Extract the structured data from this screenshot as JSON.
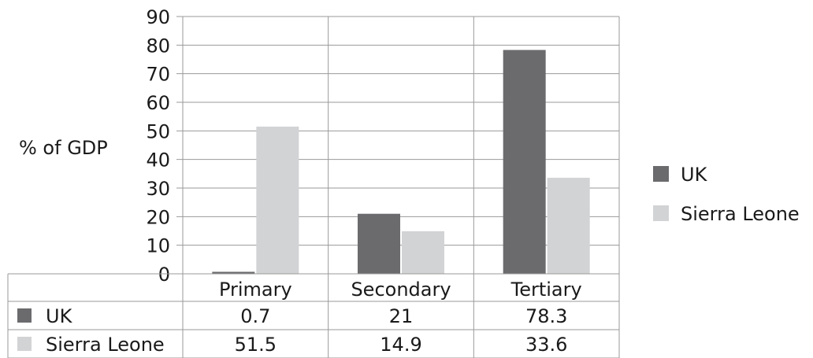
{
  "colors": {
    "uk": "#6b6b6e",
    "sierra_leone": "#d2d3d5",
    "grid": "#9a9a9a",
    "text": "#1a1a1a"
  },
  "chart_data": {
    "type": "bar",
    "categories": [
      "Primary",
      "Secondary",
      "Tertiary"
    ],
    "series": [
      {
        "name": "UK",
        "values": [
          0.7,
          21,
          78.3
        ],
        "color": "#6b6b6e"
      },
      {
        "name": "Sierra Leone",
        "values": [
          51.5,
          14.9,
          33.6
        ],
        "color": "#d2d3d5"
      }
    ],
    "ylabel": "% of GDP",
    "ylim": [
      0,
      90
    ],
    "yticks": [
      0,
      10,
      20,
      30,
      40,
      50,
      60,
      70,
      80,
      90
    ],
    "grid": true,
    "legend_position": "right",
    "data_table": true,
    "table_values": [
      [
        "0.7",
        "21",
        "78.3"
      ],
      [
        "51.5",
        "14.9",
        "33.6"
      ]
    ]
  }
}
